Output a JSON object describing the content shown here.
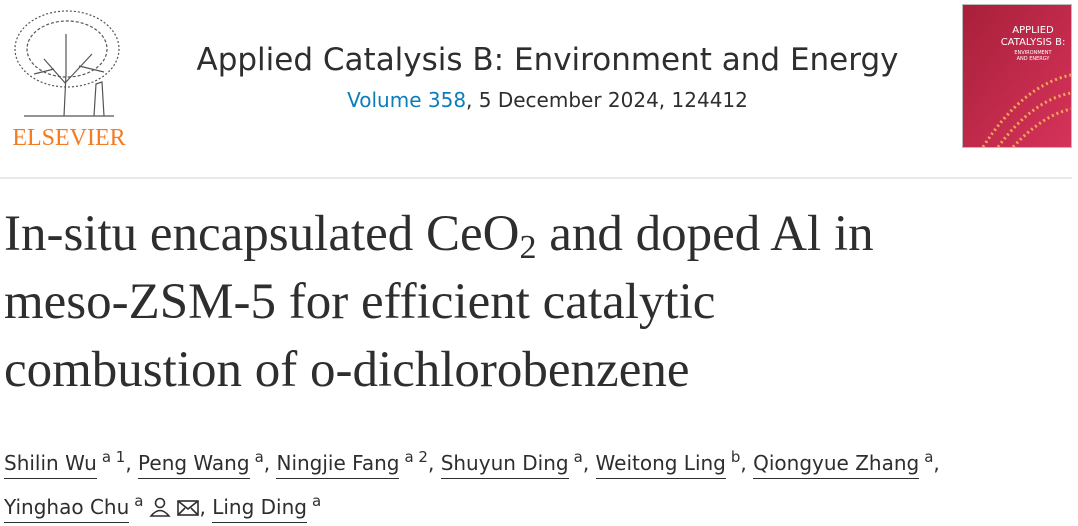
{
  "header": {
    "publisher": "ELSEVIER",
    "journal": "Applied Catalysis B: Environment and Energy",
    "volume": "Volume 358",
    "issue_info": ", 5 December 2024, 124412",
    "cover": {
      "line1": "APPLIED",
      "line2": "CATALYSIS B:",
      "line3": "ENVIRONMENT",
      "line4": "AND ENERGY"
    }
  },
  "title": {
    "lines": [
      [
        "In-situ encapsulated CeO",
        "2",
        " and doped Al in"
      ],
      [
        "meso-ZSM-5 for efficient catalytic"
      ],
      [
        "combustion of o-dichlorobenzene"
      ]
    ]
  },
  "author_separator": ",",
  "authors": [
    {
      "name": "Shilin Wu",
      "affiliation": "a 1"
    },
    {
      "name": "Peng Wang",
      "affiliation": "a"
    },
    {
      "name": "Ningjie Fang",
      "affiliation": "a 2"
    },
    {
      "name": "Shuyun Ding",
      "affiliation": "a"
    },
    {
      "name": "Weitong Ling",
      "affiliation": "b"
    },
    {
      "name": "Qiongyue Zhang",
      "affiliation": "a"
    },
    {
      "name": "Yinghao Chu",
      "affiliation": "a",
      "corresponding": true
    },
    {
      "name": "Ling Ding",
      "affiliation": "a"
    }
  ]
}
